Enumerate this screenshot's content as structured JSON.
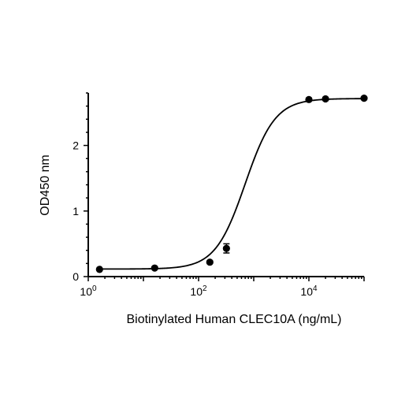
{
  "chart_data": {
    "type": "scatter",
    "title": "",
    "xlabel": "Biotinylated Human CLEC10A (ng/mL)",
    "ylabel": "OD450 nm",
    "xscale": "log",
    "xlim": [
      1,
      100000
    ],
    "ylim": [
      0,
      2.8
    ],
    "grid": false,
    "legend": "none",
    "x_ticks": [
      {
        "value": 1,
        "base": "10",
        "exp": "0"
      },
      {
        "value": 100,
        "base": "10",
        "exp": "2"
      },
      {
        "value": 10000,
        "base": "10",
        "exp": "4"
      }
    ],
    "y_ticks": [
      {
        "value": 0,
        "label": "0"
      },
      {
        "value": 1,
        "label": "1"
      },
      {
        "value": 2,
        "label": "2"
      }
    ],
    "series": [
      {
        "x": [
          1.6,
          16,
          160,
          320,
          10000,
          20000,
          100000
        ],
        "y": [
          0.11,
          0.13,
          0.22,
          0.43,
          2.7,
          2.71,
          2.72
        ],
        "error": [
          0.01,
          0.01,
          0.02,
          0.07,
          0.02,
          0.02,
          0.01
        ]
      }
    ],
    "fit": {
      "model": "4PL",
      "bottom": 0.115,
      "top": 2.715,
      "ec50": 700,
      "hill": 1.6
    },
    "colors": {
      "line": "#000000",
      "marker": "#000000"
    }
  }
}
